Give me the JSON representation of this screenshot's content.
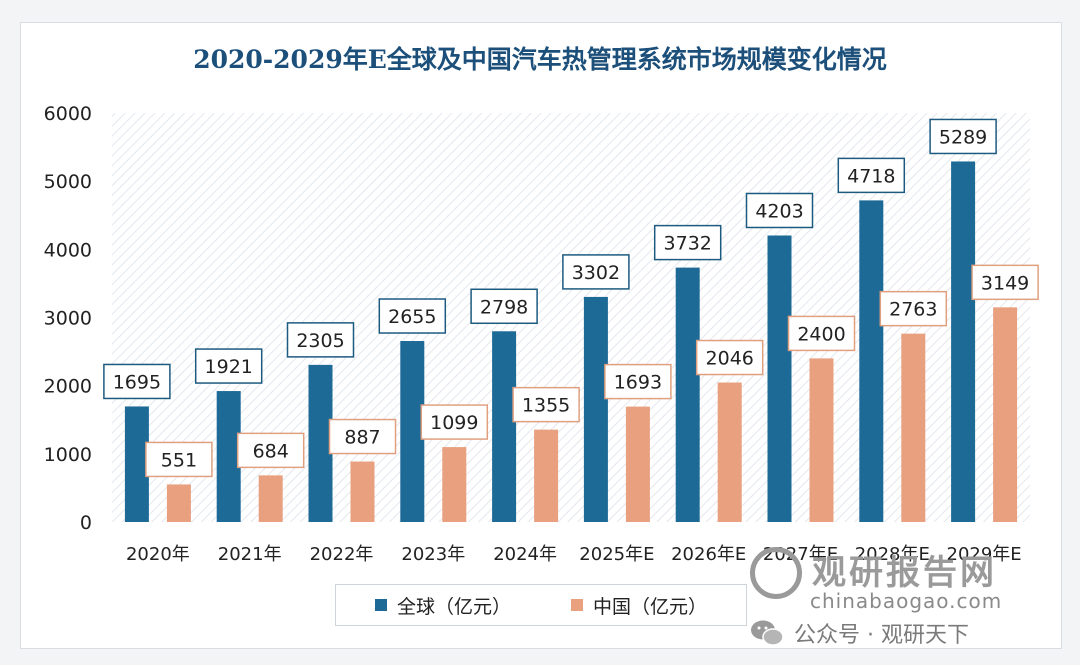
{
  "chart_data": {
    "type": "bar",
    "title": "2020-2029年E全球及中国汽车热管理系统市场规模变化情况",
    "categories": [
      "2020年",
      "2021年",
      "2022年",
      "2023年",
      "2024年",
      "2025年E",
      "2026年E",
      "2027年E",
      "2028年E",
      "2029年E"
    ],
    "series": [
      {
        "name": "全球（亿元）",
        "color": "#1d6a96",
        "values": [
          1695,
          1921,
          2305,
          2655,
          2798,
          3302,
          3732,
          4203,
          4718,
          5289
        ]
      },
      {
        "name": "中国（亿元）",
        "color": "#e8a07f",
        "values": [
          551,
          684,
          887,
          1099,
          1355,
          1693,
          2046,
          2400,
          2763,
          3149
        ]
      }
    ],
    "ylim": [
      0,
      6000
    ],
    "yticks": [
      "0",
      "1000",
      "2000",
      "3000",
      "4000",
      "5000",
      "6000"
    ],
    "grid": false,
    "legend_position": "bottom",
    "label_border_colors": {
      "global": "#1d5a80",
      "china": "#e0a080"
    }
  },
  "watermark": {
    "center_text": "观研报告",
    "center_url": "chinabaogao.com",
    "brand_name": "观研报告网",
    "brand_url": "chinabaogao.com",
    "wechat_line": "公众号 · 观研天下"
  }
}
